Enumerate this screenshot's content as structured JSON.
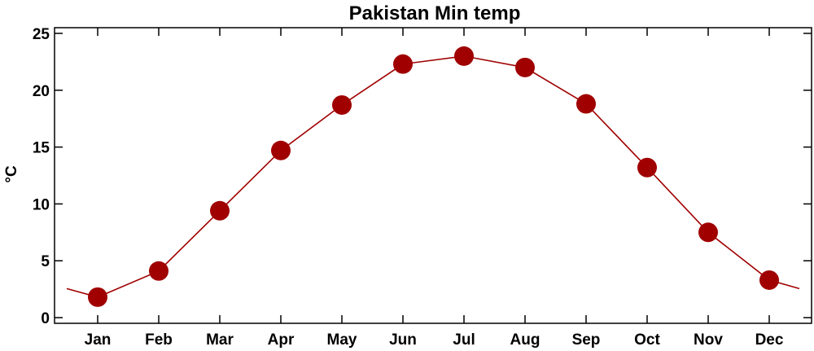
{
  "chart_data": {
    "type": "line",
    "title": "Pakistan Min temp",
    "xlabel": "",
    "ylabel": "°C",
    "categories": [
      "Jan",
      "Feb",
      "Mar",
      "Apr",
      "May",
      "Jun",
      "Jul",
      "Aug",
      "Sep",
      "Oct",
      "Nov",
      "Dec"
    ],
    "values": [
      1.8,
      4.1,
      9.4,
      14.7,
      18.7,
      22.3,
      23.0,
      22.0,
      18.8,
      13.2,
      7.5,
      3.3
    ],
    "wrap_values": {
      "before": 2.55,
      "after": 2.55
    },
    "ylim": [
      -0.5,
      25.5
    ],
    "yticks": [
      0,
      5,
      10,
      15,
      20,
      25
    ],
    "grid": false,
    "legend": "none",
    "colors": {
      "line": "#a00000",
      "marker": "#a00000",
      "frame": "#000000"
    }
  }
}
